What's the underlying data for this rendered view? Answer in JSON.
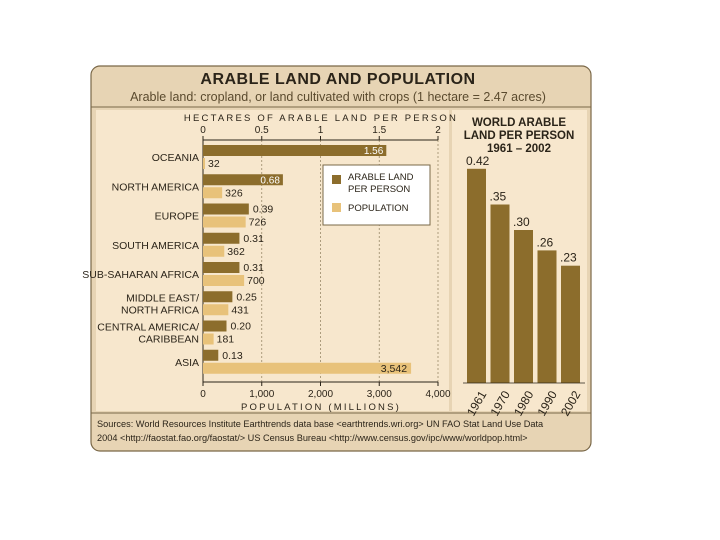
{
  "title": "ARABLE LAND AND POPULATION",
  "subtitle": "Arable land: cropland, or land cultivated with crops  (1 hectare = 2.47 acres)",
  "source_lines": [
    "Sources: World Resources Institute Earthtrends data base <earthtrends.wri.org> UN FAO Stat Land Use Data",
    "2004 <http://faostat.fao.org/faostat/>       US Census Bureau <http://www.census.gov/ipc/www/worldpop.html>"
  ],
  "colors": {
    "arable": "#8c6d2c",
    "population": "#e8c27a",
    "panel_bg": "#f7e7cd",
    "frame_bg": "#e7d4b4",
    "frame_border": "#7a6848"
  },
  "chart_data": [
    {
      "type": "bar",
      "orientation": "horizontal",
      "categories": [
        "OCEANIA",
        "NORTH AMERICA",
        "EUROPE",
        "SOUTH AMERICA",
        "SUB-SAHARAN AFRICA",
        "MIDDLE EAST/ NORTH AFRICA",
        "CENTRAL AMERICA/ CARIBBEAN",
        "ASIA"
      ],
      "category_lines": [
        [
          "OCEANIA"
        ],
        [
          "NORTH AMERICA"
        ],
        [
          "EUROPE"
        ],
        [
          "SOUTH AMERICA"
        ],
        [
          "SUB-SAHARAN AFRICA"
        ],
        [
          "MIDDLE EAST/",
          "NORTH AFRICA"
        ],
        [
          "CENTRAL AMERICA/",
          "CARIBBEAN"
        ],
        [
          "ASIA"
        ]
      ],
      "series": [
        {
          "name": "ARABLE LAND PER PERSON",
          "axis": "top",
          "values": [
            1.56,
            0.68,
            0.39,
            0.31,
            0.31,
            0.25,
            0.2,
            0.13
          ],
          "labels": [
            "1.56",
            "0.68",
            "0.39",
            "0.31",
            "0.31",
            "0.25",
            "0.20",
            "0.13"
          ]
        },
        {
          "name": "POPULATION",
          "axis": "bottom",
          "values": [
            32,
            326,
            726,
            362,
            700,
            431,
            181,
            3542
          ],
          "labels": [
            "32",
            "326",
            "726",
            "362",
            "700",
            "431",
            "181",
            "3,542"
          ]
        }
      ],
      "top_axis": {
        "label": "HECTARES OF ARABLE LAND PER PERSON",
        "range": [
          0,
          2
        ],
        "ticks": [
          0,
          0.5,
          1,
          1.5,
          2
        ],
        "tick_labels": [
          "0",
          "0.5",
          "1",
          "1.5",
          "2"
        ]
      },
      "bottom_axis": {
        "label": "POPULATION (MILLIONS)",
        "range": [
          0,
          4000
        ],
        "ticks": [
          0,
          1000,
          2000,
          3000,
          4000
        ],
        "tick_labels": [
          "0",
          "1,000",
          "2,000",
          "3,000",
          "4,000"
        ]
      },
      "grid": "vertical dashed",
      "legend": "upper-right of plot"
    },
    {
      "type": "bar",
      "title_lines": [
        "WORLD ARABLE",
        "LAND PER PERSON",
        "1961 – 2002"
      ],
      "categories": [
        "1961",
        "1970",
        "1980",
        "1990",
        "2002"
      ],
      "values": [
        0.42,
        0.35,
        0.3,
        0.26,
        0.23
      ],
      "labels": [
        "0.42",
        ".35",
        ".30",
        ".26",
        ".23"
      ]
    }
  ]
}
